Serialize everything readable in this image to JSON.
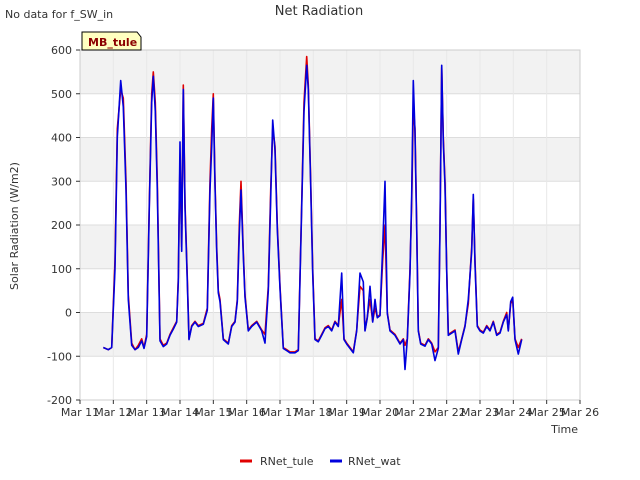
{
  "header": {
    "no_data_note": "No data for f_SW_in"
  },
  "badge": {
    "label": "MB_tule",
    "bg_color": "#ffffc0",
    "text_color": "#8b0000"
  },
  "chart_data": {
    "type": "line",
    "title": "Net Radiation",
    "xlabel": "Time",
    "ylabel": "Solar Radiation (W/m2)",
    "x_tick_labels": [
      "Mar 11",
      "Mar 12",
      "Mar 13",
      "Mar 14",
      "Mar 15",
      "Mar 16",
      "Mar 17",
      "Mar 18",
      "Mar 19",
      "Mar 20",
      "Mar 21",
      "Mar 22",
      "Mar 23",
      "Mar 24",
      "Mar 25",
      "Mar 26"
    ],
    "xlim_days": [
      11,
      26
    ],
    "y_ticks": [
      -200,
      -100,
      0,
      100,
      200,
      300,
      400,
      500,
      600
    ],
    "ylim": [
      -200,
      600
    ],
    "grid": true,
    "legend_placement": "bottom-center",
    "series": [
      {
        "name": "RNet_tule",
        "color": "#e00000",
        "points": [
          [
            11.7,
            -80
          ],
          [
            11.85,
            -85
          ],
          [
            11.95,
            -80
          ],
          [
            12.05,
            120
          ],
          [
            12.12,
            420
          ],
          [
            12.22,
            510
          ],
          [
            12.3,
            490
          ],
          [
            12.38,
            300
          ],
          [
            12.45,
            40
          ],
          [
            12.55,
            -70
          ],
          [
            12.65,
            -85
          ],
          [
            12.75,
            -75
          ],
          [
            12.85,
            -60
          ],
          [
            12.92,
            -80
          ],
          [
            13.0,
            -50
          ],
          [
            13.08,
            250
          ],
          [
            13.15,
            500
          ],
          [
            13.2,
            550
          ],
          [
            13.26,
            480
          ],
          [
            13.32,
            300
          ],
          [
            13.4,
            -60
          ],
          [
            13.5,
            -75
          ],
          [
            13.6,
            -70
          ],
          [
            13.7,
            -50
          ],
          [
            13.8,
            -35
          ],
          [
            13.9,
            -20
          ],
          [
            13.95,
            80
          ],
          [
            14.0,
            350
          ],
          [
            14.05,
            150
          ],
          [
            14.1,
            520
          ],
          [
            14.15,
            250
          ],
          [
            14.22,
            80
          ],
          [
            14.27,
            -60
          ],
          [
            14.35,
            -30
          ],
          [
            14.45,
            -20
          ],
          [
            14.55,
            -30
          ],
          [
            14.7,
            -25
          ],
          [
            14.82,
            10
          ],
          [
            14.9,
            300
          ],
          [
            14.95,
            420
          ],
          [
            15.0,
            500
          ],
          [
            15.05,
            300
          ],
          [
            15.1,
            150
          ],
          [
            15.15,
            50
          ],
          [
            15.2,
            30
          ],
          [
            15.3,
            -60
          ],
          [
            15.45,
            -70
          ],
          [
            15.55,
            -30
          ],
          [
            15.65,
            -20
          ],
          [
            15.72,
            30
          ],
          [
            15.78,
            200
          ],
          [
            15.83,
            300
          ],
          [
            15.9,
            140
          ],
          [
            15.95,
            40
          ],
          [
            16.05,
            -40
          ],
          [
            16.15,
            -30
          ],
          [
            16.3,
            -20
          ],
          [
            16.45,
            -40
          ],
          [
            16.55,
            -50
          ],
          [
            16.65,
            60
          ],
          [
            16.72,
            280
          ],
          [
            16.78,
            420
          ],
          [
            16.85,
            380
          ],
          [
            16.92,
            200
          ],
          [
            17.0,
            60
          ],
          [
            17.1,
            -80
          ],
          [
            17.2,
            -85
          ],
          [
            17.3,
            -90
          ],
          [
            17.45,
            -90
          ],
          [
            17.55,
            -85
          ],
          [
            17.65,
            250
          ],
          [
            17.72,
            480
          ],
          [
            17.8,
            585
          ],
          [
            17.85,
            520
          ],
          [
            17.92,
            300
          ],
          [
            17.98,
            100
          ],
          [
            18.05,
            -60
          ],
          [
            18.15,
            -65
          ],
          [
            18.25,
            -50
          ],
          [
            18.35,
            -35
          ],
          [
            18.45,
            -30
          ],
          [
            18.55,
            -40
          ],
          [
            18.65,
            -20
          ],
          [
            18.75,
            -30
          ],
          [
            18.85,
            30
          ],
          [
            18.92,
            -60
          ],
          [
            19.0,
            -70
          ],
          [
            19.1,
            -80
          ],
          [
            19.2,
            -90
          ],
          [
            19.3,
            -40
          ],
          [
            19.4,
            60
          ],
          [
            19.5,
            50
          ],
          [
            19.55,
            -40
          ],
          [
            19.62,
            -10
          ],
          [
            19.7,
            30
          ],
          [
            19.78,
            -20
          ],
          [
            19.85,
            10
          ],
          [
            19.92,
            -10
          ],
          [
            20.0,
            -5
          ],
          [
            20.08,
            120
          ],
          [
            20.15,
            200
          ],
          [
            20.22,
            0
          ],
          [
            20.3,
            -40
          ],
          [
            20.45,
            -50
          ],
          [
            20.6,
            -70
          ],
          [
            20.7,
            -60
          ],
          [
            20.75,
            -75
          ],
          [
            20.82,
            -60
          ],
          [
            20.9,
            100
          ],
          [
            20.95,
            250
          ],
          [
            21.0,
            470
          ],
          [
            21.05,
            420
          ],
          [
            21.1,
            200
          ],
          [
            21.15,
            -40
          ],
          [
            21.22,
            -70
          ],
          [
            21.35,
            -75
          ],
          [
            21.45,
            -60
          ],
          [
            21.55,
            -70
          ],
          [
            21.65,
            -90
          ],
          [
            21.75,
            -80
          ],
          [
            21.8,
            200
          ],
          [
            21.85,
            560
          ],
          [
            21.9,
            400
          ],
          [
            21.95,
            300
          ],
          [
            22.0,
            100
          ],
          [
            22.05,
            -50
          ],
          [
            22.15,
            -45
          ],
          [
            22.25,
            -40
          ],
          [
            22.35,
            -90
          ],
          [
            22.45,
            -60
          ],
          [
            22.55,
            -30
          ],
          [
            22.65,
            20
          ],
          [
            22.75,
            150
          ],
          [
            22.8,
            260
          ],
          [
            22.85,
            120
          ],
          [
            22.92,
            -30
          ],
          [
            23.0,
            -40
          ],
          [
            23.1,
            -45
          ],
          [
            23.2,
            -30
          ],
          [
            23.3,
            -40
          ],
          [
            23.4,
            -20
          ],
          [
            23.5,
            -50
          ],
          [
            23.6,
            -45
          ],
          [
            23.7,
            -20
          ],
          [
            23.8,
            0
          ],
          [
            23.85,
            -40
          ],
          [
            23.92,
            20
          ],
          [
            23.98,
            30
          ],
          [
            24.05,
            -60
          ],
          [
            24.15,
            -80
          ],
          [
            24.25,
            -60
          ]
        ]
      },
      {
        "name": "RNet_wat",
        "color": "#0000dd",
        "points": [
          [
            11.7,
            -80
          ],
          [
            11.85,
            -85
          ],
          [
            11.95,
            -80
          ],
          [
            12.05,
            100
          ],
          [
            12.12,
            400
          ],
          [
            12.22,
            530
          ],
          [
            12.3,
            470
          ],
          [
            12.38,
            280
          ],
          [
            12.45,
            30
          ],
          [
            12.55,
            -75
          ],
          [
            12.65,
            -85
          ],
          [
            12.75,
            -80
          ],
          [
            12.85,
            -65
          ],
          [
            12.92,
            -82
          ],
          [
            13.0,
            -55
          ],
          [
            13.08,
            240
          ],
          [
            13.15,
            480
          ],
          [
            13.2,
            540
          ],
          [
            13.26,
            460
          ],
          [
            13.32,
            280
          ],
          [
            13.4,
            -65
          ],
          [
            13.5,
            -78
          ],
          [
            13.6,
            -72
          ],
          [
            13.7,
            -52
          ],
          [
            13.8,
            -38
          ],
          [
            13.9,
            -22
          ],
          [
            13.95,
            70
          ],
          [
            14.0,
            390
          ],
          [
            14.05,
            140
          ],
          [
            14.1,
            510
          ],
          [
            14.15,
            240
          ],
          [
            14.22,
            70
          ],
          [
            14.27,
            -62
          ],
          [
            14.35,
            -32
          ],
          [
            14.45,
            -22
          ],
          [
            14.55,
            -32
          ],
          [
            14.7,
            -27
          ],
          [
            14.82,
            5
          ],
          [
            14.9,
            280
          ],
          [
            14.95,
            380
          ],
          [
            15.0,
            490
          ],
          [
            15.05,
            290
          ],
          [
            15.1,
            140
          ],
          [
            15.15,
            45
          ],
          [
            15.2,
            25
          ],
          [
            15.3,
            -62
          ],
          [
            15.45,
            -72
          ],
          [
            15.55,
            -32
          ],
          [
            15.65,
            -22
          ],
          [
            15.72,
            25
          ],
          [
            15.78,
            180
          ],
          [
            15.83,
            280
          ],
          [
            15.9,
            130
          ],
          [
            15.95,
            35
          ],
          [
            16.05,
            -42
          ],
          [
            16.15,
            -32
          ],
          [
            16.3,
            -22
          ],
          [
            16.45,
            -42
          ],
          [
            16.55,
            -70
          ],
          [
            16.65,
            50
          ],
          [
            16.72,
            260
          ],
          [
            16.78,
            440
          ],
          [
            16.85,
            370
          ],
          [
            16.92,
            190
          ],
          [
            17.0,
            55
          ],
          [
            17.1,
            -82
          ],
          [
            17.2,
            -87
          ],
          [
            17.3,
            -92
          ],
          [
            17.45,
            -92
          ],
          [
            17.55,
            -87
          ],
          [
            17.65,
            240
          ],
          [
            17.72,
            460
          ],
          [
            17.8,
            565
          ],
          [
            17.85,
            510
          ],
          [
            17.92,
            290
          ],
          [
            17.98,
            90
          ],
          [
            18.05,
            -62
          ],
          [
            18.15,
            -67
          ],
          [
            18.25,
            -52
          ],
          [
            18.35,
            -37
          ],
          [
            18.45,
            -32
          ],
          [
            18.55,
            -42
          ],
          [
            18.65,
            -22
          ],
          [
            18.75,
            -32
          ],
          [
            18.85,
            90
          ],
          [
            18.92,
            -62
          ],
          [
            19.0,
            -72
          ],
          [
            19.1,
            -82
          ],
          [
            19.2,
            -92
          ],
          [
            19.3,
            -42
          ],
          [
            19.4,
            90
          ],
          [
            19.5,
            70
          ],
          [
            19.55,
            -42
          ],
          [
            19.62,
            -12
          ],
          [
            19.7,
            60
          ],
          [
            19.78,
            -22
          ],
          [
            19.85,
            30
          ],
          [
            19.92,
            -12
          ],
          [
            20.0,
            -7
          ],
          [
            20.08,
            150
          ],
          [
            20.15,
            300
          ],
          [
            20.22,
            -2
          ],
          [
            20.3,
            -42
          ],
          [
            20.45,
            -52
          ],
          [
            20.6,
            -72
          ],
          [
            20.7,
            -62
          ],
          [
            20.75,
            -130
          ],
          [
            20.82,
            -62
          ],
          [
            20.9,
            90
          ],
          [
            20.95,
            270
          ],
          [
            21.0,
            530
          ],
          [
            21.05,
            410
          ],
          [
            21.1,
            190
          ],
          [
            21.15,
            -42
          ],
          [
            21.22,
            -72
          ],
          [
            21.35,
            -77
          ],
          [
            21.45,
            -62
          ],
          [
            21.55,
            -72
          ],
          [
            21.65,
            -110
          ],
          [
            21.75,
            -82
          ],
          [
            21.8,
            190
          ],
          [
            21.85,
            565
          ],
          [
            21.9,
            390
          ],
          [
            21.95,
            290
          ],
          [
            22.0,
            95
          ],
          [
            22.05,
            -52
          ],
          [
            22.15,
            -47
          ],
          [
            22.25,
            -42
          ],
          [
            22.35,
            -95
          ],
          [
            22.45,
            -62
          ],
          [
            22.55,
            -32
          ],
          [
            22.65,
            30
          ],
          [
            22.75,
            140
          ],
          [
            22.8,
            270
          ],
          [
            22.85,
            110
          ],
          [
            22.92,
            -32
          ],
          [
            23.0,
            -42
          ],
          [
            23.1,
            -47
          ],
          [
            23.2,
            -32
          ],
          [
            23.3,
            -42
          ],
          [
            23.4,
            -22
          ],
          [
            23.5,
            -52
          ],
          [
            23.6,
            -47
          ],
          [
            23.7,
            -22
          ],
          [
            23.8,
            -5
          ],
          [
            23.85,
            -42
          ],
          [
            23.92,
            25
          ],
          [
            23.98,
            35
          ],
          [
            24.05,
            -62
          ],
          [
            24.15,
            -95
          ],
          [
            24.25,
            -62
          ]
        ]
      }
    ]
  }
}
